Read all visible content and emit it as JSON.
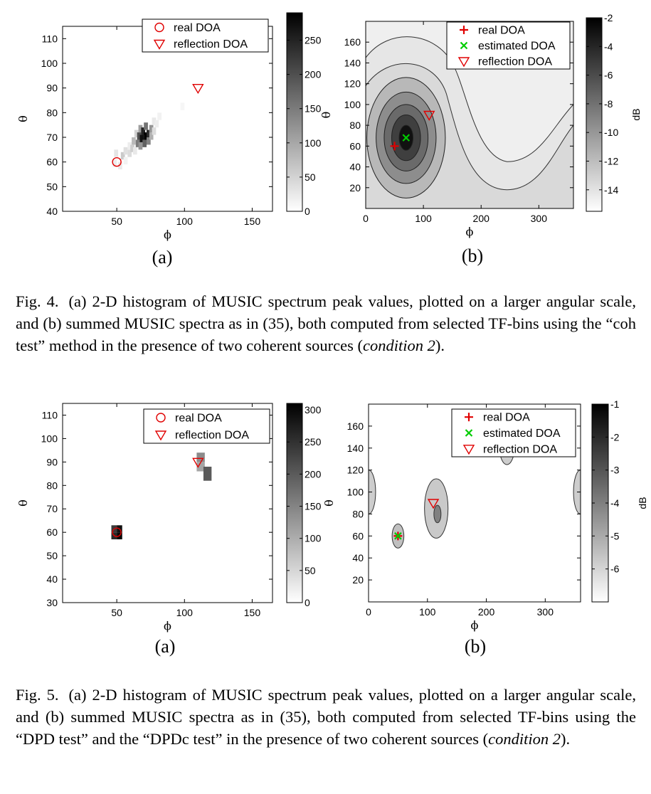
{
  "figures": [
    {
      "number": "Fig. 4.",
      "caption_parts": [
        "(a) 2-D histogram of MUSIC spectrum peak values, plotted on a larger angular scale, and (b) summed MUSIC spectra as in (35), both computed from selected TF-bins using the “coh test” method in the presence of two coherent sources (",
        "condition 2",
        ")."
      ]
    },
    {
      "number": "Fig. 5.",
      "caption_parts": [
        "(a) 2-D histogram of MUSIC spectrum peak values, plotted on a larger angular scale, and (b) summed MUSIC spectra as in (35), both computed from selected TF-bins using the “DPD test” and the “DPDc test” in the presence of two coherent sources (",
        "condition 2",
        ")."
      ]
    }
  ],
  "chart_data": [
    {
      "id": "fig4a",
      "type": "heatmap",
      "subplot_label": "(a)",
      "title": "",
      "xlabel": "ϕ",
      "ylabel": "θ",
      "xlim": [
        10,
        165
      ],
      "ylim": [
        40,
        115
      ],
      "xticks": [
        50,
        100,
        150
      ],
      "yticks": [
        40,
        50,
        60,
        70,
        80,
        90,
        100,
        110
      ],
      "colorbar": {
        "range": [
          0,
          290
        ],
        "ticks": [
          0,
          50,
          100,
          150,
          200,
          250
        ],
        "label": "",
        "colormap": "gray-reversed"
      },
      "legend": {
        "position": "top-right",
        "entries": [
          {
            "label": "real DOA",
            "marker": "circle",
            "color": "#e00000"
          },
          {
            "label": "reflection DOA",
            "marker": "triangle-down",
            "color": "#e00000"
          }
        ]
      },
      "markers": [
        {
          "series": "real DOA",
          "x": 50,
          "y": 60
        },
        {
          "series": "reflection DOA",
          "x": 110,
          "y": 90
        }
      ],
      "cells": [
        {
          "x": 47,
          "y": 58,
          "v": 20
        },
        {
          "x": 48,
          "y": 62,
          "v": 30
        },
        {
          "x": 51,
          "y": 57,
          "v": 25
        },
        {
          "x": 53,
          "y": 61,
          "v": 60
        },
        {
          "x": 55,
          "y": 59,
          "v": 15
        },
        {
          "x": 55,
          "y": 63,
          "v": 35
        },
        {
          "x": 58,
          "y": 62,
          "v": 40
        },
        {
          "x": 58,
          "y": 65,
          "v": 20
        },
        {
          "x": 60,
          "y": 64,
          "v": 55
        },
        {
          "x": 61,
          "y": 67,
          "v": 80
        },
        {
          "x": 62,
          "y": 63,
          "v": 25
        },
        {
          "x": 63,
          "y": 70,
          "v": 50
        },
        {
          "x": 64,
          "y": 66,
          "v": 150
        },
        {
          "x": 65,
          "y": 69,
          "v": 200
        },
        {
          "x": 66,
          "y": 65,
          "v": 120
        },
        {
          "x": 66,
          "y": 72,
          "v": 110
        },
        {
          "x": 67,
          "y": 68,
          "v": 270
        },
        {
          "x": 68,
          "y": 71,
          "v": 250
        },
        {
          "x": 69,
          "y": 66,
          "v": 180
        },
        {
          "x": 70,
          "y": 69,
          "v": 290
        },
        {
          "x": 70,
          "y": 73,
          "v": 160
        },
        {
          "x": 72,
          "y": 70,
          "v": 240
        },
        {
          "x": 72,
          "y": 67,
          "v": 140
        },
        {
          "x": 74,
          "y": 72,
          "v": 120
        },
        {
          "x": 74,
          "y": 69,
          "v": 90
        },
        {
          "x": 76,
          "y": 71,
          "v": 40
        },
        {
          "x": 76,
          "y": 75,
          "v": 25
        },
        {
          "x": 78,
          "y": 74,
          "v": 20
        },
        {
          "x": 80,
          "y": 77,
          "v": 15
        },
        {
          "x": 97,
          "y": 81,
          "v": 10
        }
      ]
    },
    {
      "id": "fig4b",
      "type": "heatmap",
      "subplot_label": "(b)",
      "title": "",
      "xlabel": "ϕ",
      "ylabel": "θ",
      "xlim": [
        0,
        360
      ],
      "ylim": [
        0,
        180
      ],
      "xticks": [
        0,
        100,
        200,
        300
      ],
      "yticks": [
        20,
        40,
        60,
        80,
        100,
        120,
        140,
        160
      ],
      "colorbar": {
        "range": [
          -15.5,
          -2
        ],
        "ticks": [
          -2,
          -4,
          -6,
          -8,
          -10,
          -12,
          -14
        ],
        "label": "dB",
        "colormap": "gray-reversed"
      },
      "contour_levels_dB": [
        -13.5,
        -11,
        -8.5,
        -6,
        -3.5
      ],
      "peak": {
        "x": 70,
        "y": 68,
        "value_dB": -2
      },
      "legend": {
        "position": "top-right",
        "entries": [
          {
            "label": "real DOA",
            "marker": "plus",
            "color": "#e00000"
          },
          {
            "label": "estimated DOA",
            "marker": "x",
            "color": "#00cc00"
          },
          {
            "label": "reflection DOA",
            "marker": "triangle-down",
            "color": "#e00000"
          }
        ]
      },
      "markers": [
        {
          "series": "real DOA",
          "x": 50,
          "y": 60
        },
        {
          "series": "estimated DOA",
          "x": 70,
          "y": 68
        },
        {
          "series": "reflection DOA",
          "x": 110,
          "y": 90
        }
      ]
    },
    {
      "id": "fig5a",
      "type": "heatmap",
      "subplot_label": "(a)",
      "title": "",
      "xlabel": "ϕ",
      "ylabel": "θ",
      "xlim": [
        10,
        165
      ],
      "ylim": [
        30,
        115
      ],
      "xticks": [
        50,
        100,
        150
      ],
      "yticks": [
        30,
        40,
        50,
        60,
        70,
        80,
        90,
        100,
        110
      ],
      "colorbar": {
        "range": [
          0,
          310
        ],
        "ticks": [
          0,
          50,
          100,
          150,
          200,
          250,
          300
        ],
        "label": "",
        "colormap": "gray-reversed"
      },
      "legend": {
        "position": "top-right",
        "entries": [
          {
            "label": "real DOA",
            "marker": "circle",
            "color": "#e00000"
          },
          {
            "label": "reflection DOA",
            "marker": "triangle-down",
            "color": "#e00000"
          }
        ]
      },
      "markers": [
        {
          "series": "real DOA",
          "x": 50,
          "y": 60
        },
        {
          "series": "reflection DOA",
          "x": 110,
          "y": 90
        }
      ],
      "cells": [
        {
          "x": 46,
          "y": 57,
          "w": 4,
          "h": 3,
          "v": 260
        },
        {
          "x": 50,
          "y": 57,
          "w": 4,
          "h": 3,
          "v": 300
        },
        {
          "x": 46,
          "y": 60,
          "w": 4,
          "h": 3,
          "v": 240
        },
        {
          "x": 50,
          "y": 60,
          "w": 4,
          "h": 3,
          "v": 290
        },
        {
          "x": 109,
          "y": 90,
          "w": 6,
          "h": 4,
          "v": 140
        },
        {
          "x": 109,
          "y": 86,
          "w": 6,
          "h": 4,
          "v": 110
        },
        {
          "x": 114,
          "y": 82,
          "w": 6,
          "h": 6,
          "v": 200
        }
      ]
    },
    {
      "id": "fig5b",
      "type": "heatmap",
      "subplot_label": "(b)",
      "title": "",
      "xlabel": "ϕ",
      "ylabel": "θ",
      "xlim": [
        0,
        360
      ],
      "ylim": [
        0,
        180
      ],
      "xticks": [
        0,
        100,
        200,
        300
      ],
      "yticks": [
        20,
        40,
        60,
        80,
        100,
        120,
        140,
        160
      ],
      "colorbar": {
        "range": [
          -7,
          -1
        ],
        "ticks": [
          -1,
          -2,
          -3,
          -4,
          -5,
          -6
        ],
        "label": "dB",
        "colormap": "gray-reversed"
      },
      "blobs": [
        {
          "cx": 50,
          "cy": 60,
          "rx": 10,
          "ry": 11,
          "level_dB": -6
        },
        {
          "cx": 115,
          "cy": 85,
          "rx": 20,
          "ry": 27,
          "level_dB": -6.2
        },
        {
          "cx": 117,
          "cy": 80,
          "rx": 6,
          "ry": 8,
          "level_dB": -4.5
        },
        {
          "cx": 235,
          "cy": 145,
          "rx": 14,
          "ry": 20,
          "level_dB": -6.3
        },
        {
          "cx": 0,
          "cy": 100,
          "rx": 12,
          "ry": 20,
          "level_dB": -6.3
        },
        {
          "cx": 360,
          "cy": 100,
          "rx": 12,
          "ry": 20,
          "level_dB": -6.3
        }
      ],
      "legend": {
        "position": "top-right",
        "entries": [
          {
            "label": "real DOA",
            "marker": "plus",
            "color": "#e00000"
          },
          {
            "label": "estimated DOA",
            "marker": "x",
            "color": "#00cc00"
          },
          {
            "label": "reflection DOA",
            "marker": "triangle-down",
            "color": "#e00000"
          }
        ]
      },
      "markers": [
        {
          "series": "real DOA",
          "x": 50,
          "y": 60
        },
        {
          "series": "estimated DOA",
          "x": 50,
          "y": 60
        },
        {
          "series": "reflection DOA",
          "x": 110,
          "y": 90
        }
      ]
    }
  ]
}
